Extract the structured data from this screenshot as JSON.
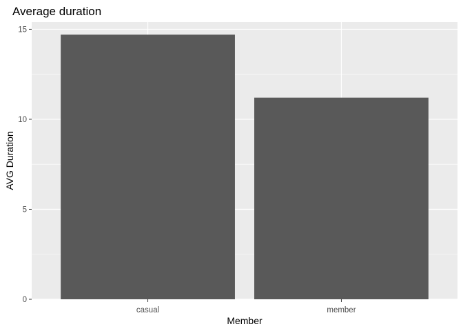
{
  "chart_data": {
    "type": "bar",
    "title": "Average duration",
    "xlabel": "Member",
    "ylabel": "AVG Duration",
    "categories": [
      "casual",
      "member"
    ],
    "values": [
      14.7,
      11.2
    ],
    "ylim": [
      0,
      15.4
    ],
    "yticks": [
      0,
      5,
      10,
      15
    ],
    "y_minor_ticks": [
      2.5,
      7.5,
      12.5
    ],
    "grid": true,
    "legend": "none",
    "colors": {
      "bar": "#595959",
      "panel": "#ebebeb",
      "grid": "#ffffff",
      "tick_text": "#4d4d4d",
      "tick_mark": "#333333"
    }
  }
}
